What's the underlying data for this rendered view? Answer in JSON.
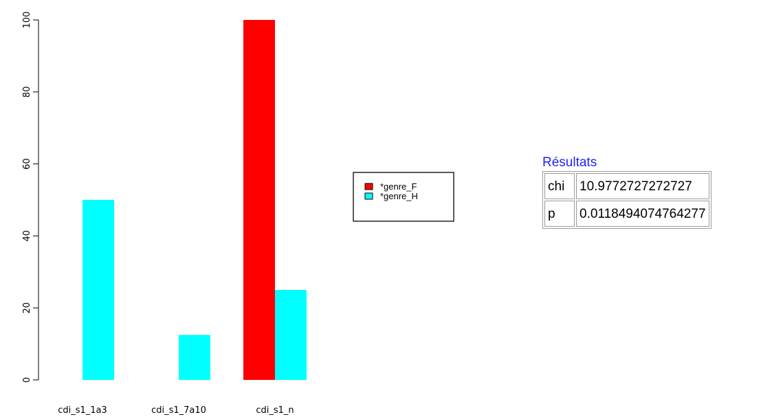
{
  "chart_data": {
    "type": "bar",
    "categories": [
      "cdi_s1_1a3",
      "cdi_s1_7a10",
      "cdi_s1_n"
    ],
    "series": [
      {
        "name": "*genre_F",
        "color": "#ff0000",
        "values": [
          0,
          0,
          100
        ]
      },
      {
        "name": "*genre_H",
        "color": "#00ffff",
        "values": [
          50,
          12.5,
          25
        ]
      }
    ],
    "ylim": [
      0,
      100
    ],
    "yticks": [
      "0",
      "20",
      "40",
      "60",
      "80",
      "100"
    ],
    "ytick_values": [
      0,
      20,
      40,
      60,
      80,
      100
    ],
    "grid": false,
    "legend_placement": "right of plot",
    "title": "",
    "xlabel": "",
    "ylabel": ""
  },
  "results": {
    "title": "Résultats",
    "rows": [
      {
        "key": "chi",
        "value": "10.9772727272727"
      },
      {
        "key": "p",
        "value": "0.0118494074764277"
      }
    ]
  }
}
